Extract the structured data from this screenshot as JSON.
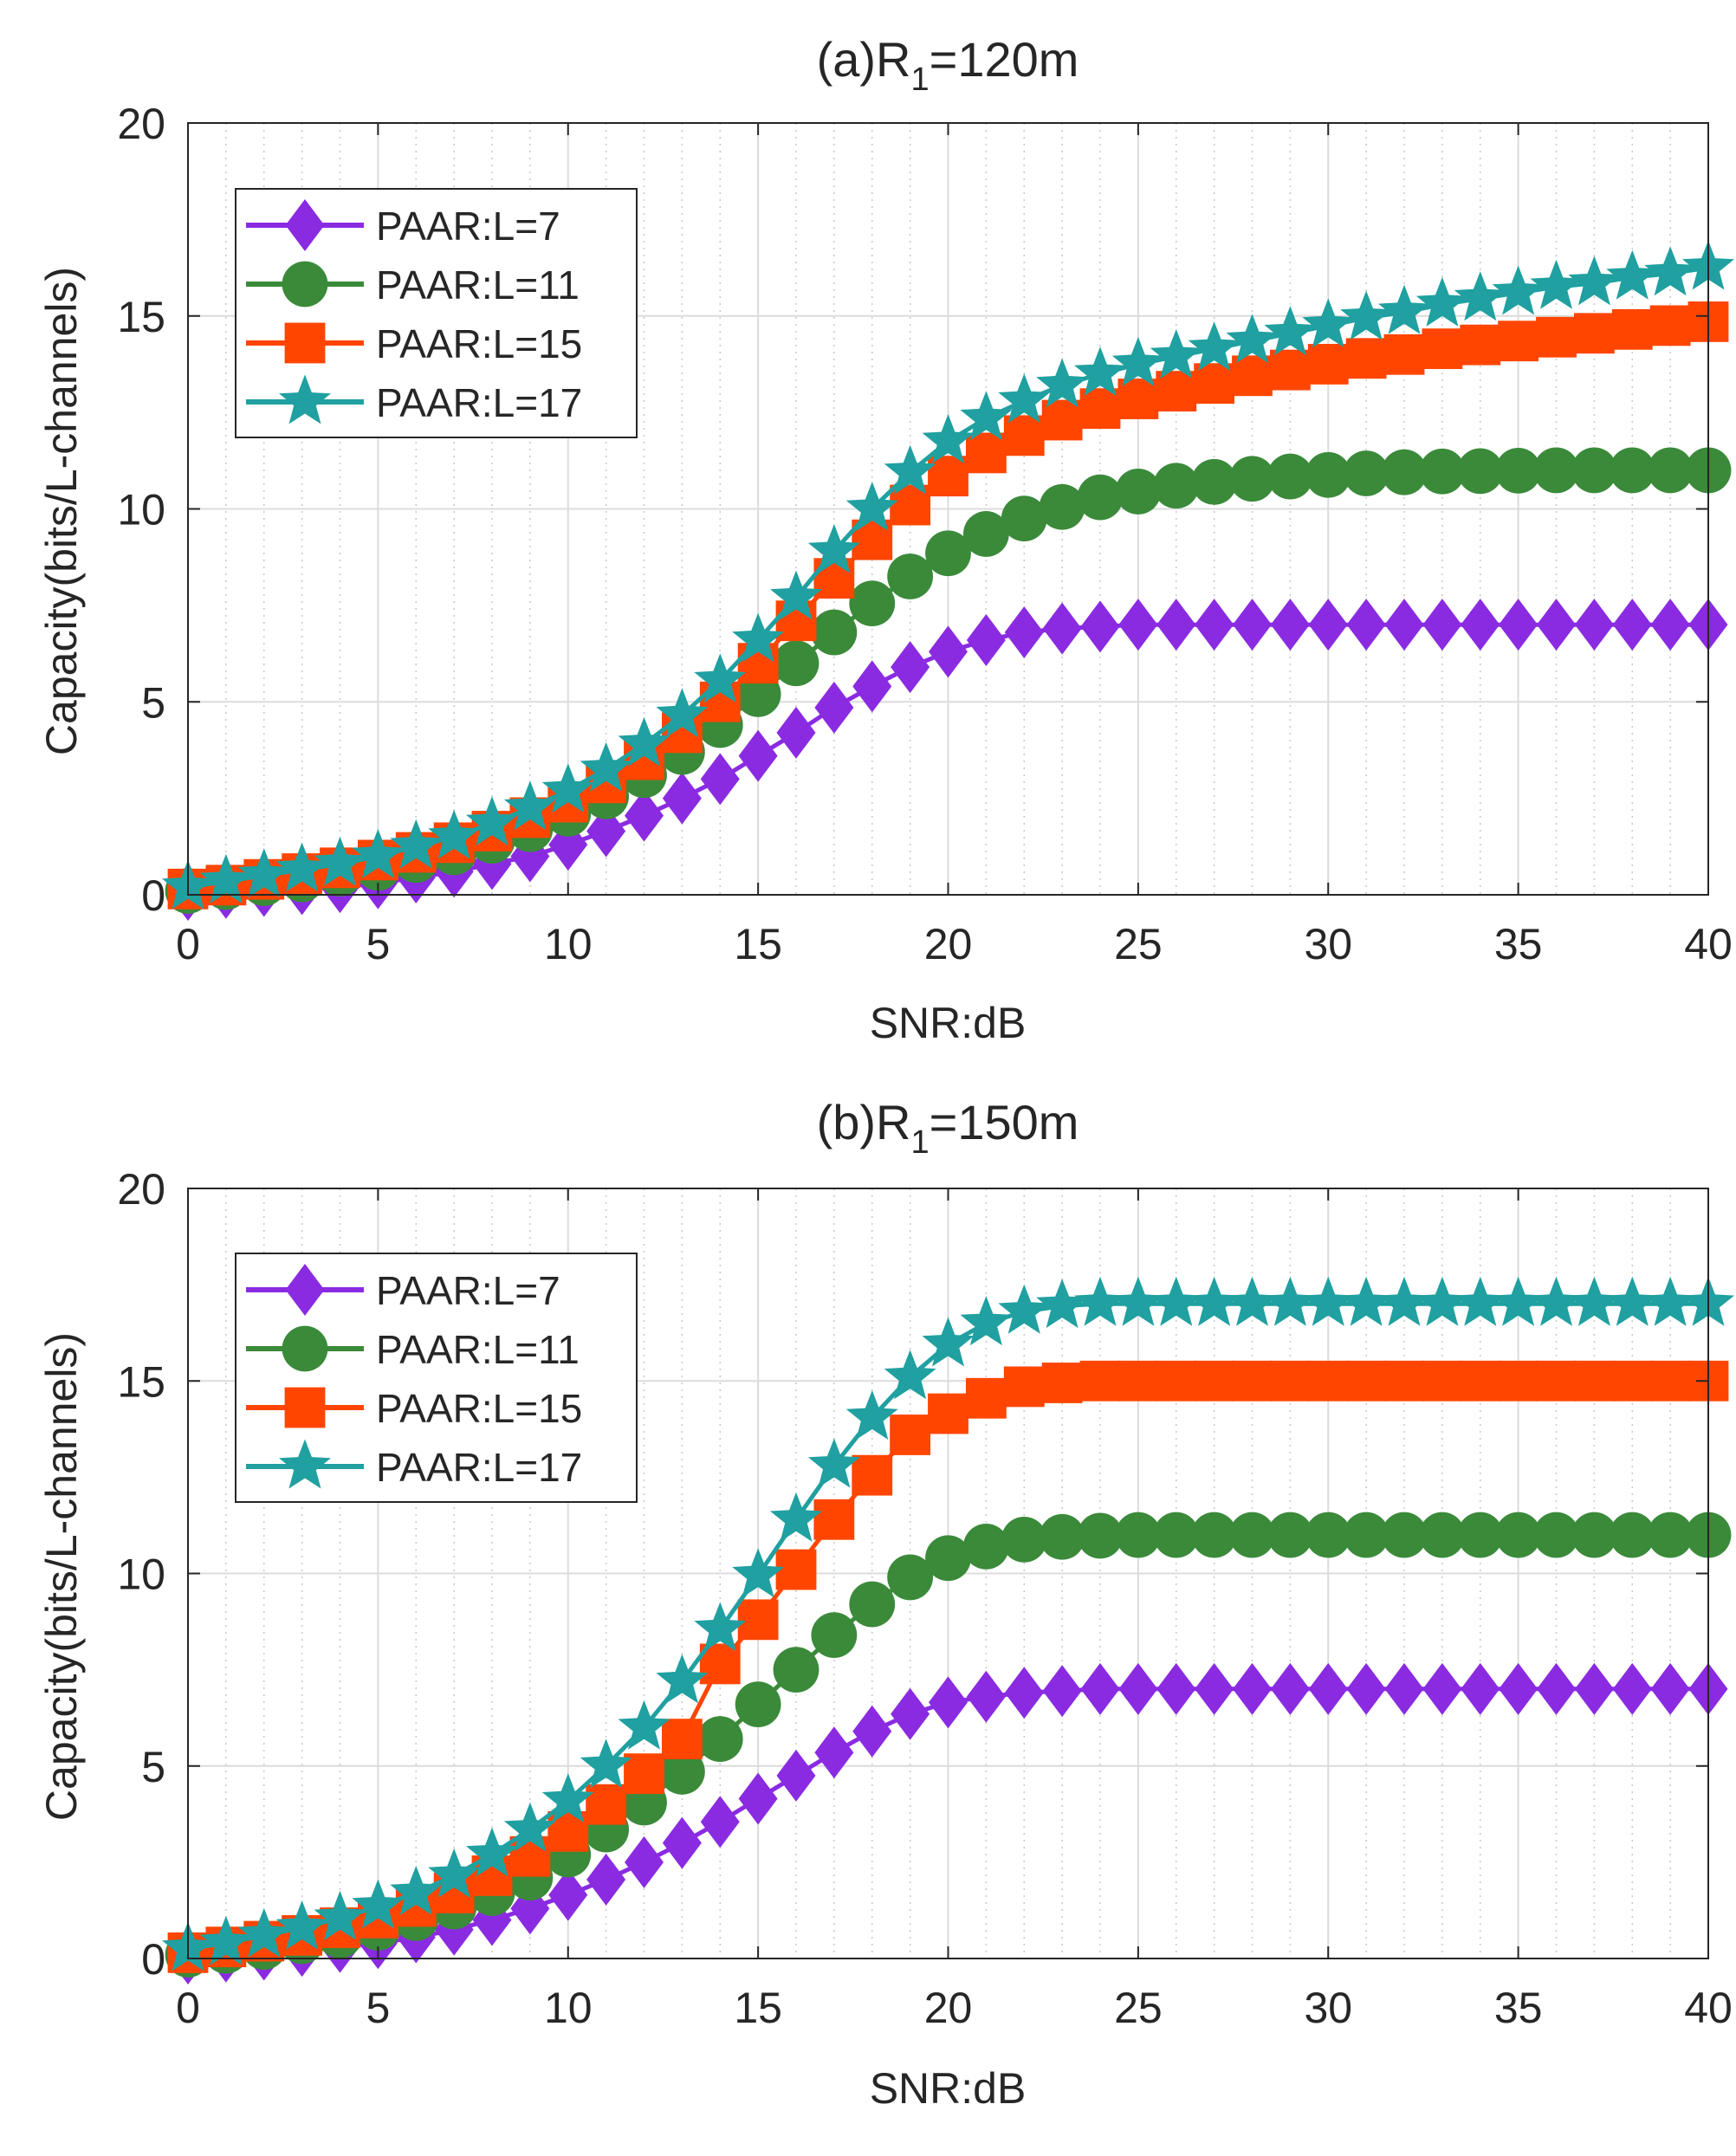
{
  "chart_data": [
    {
      "type": "line",
      "title": "(a)R",
      "title_sub": "1",
      "title_suffix": "=120m",
      "xlabel": "SNR:dB",
      "ylabel": "Capacity(bits/L-channels)",
      "xlim": [
        0,
        40
      ],
      "ylim": [
        0,
        20
      ],
      "xticks": [
        0,
        5,
        10,
        15,
        20,
        25,
        30,
        35,
        40
      ],
      "yticks": [
        0,
        5,
        10,
        15,
        20
      ],
      "grid": true,
      "legend_position": "top-left",
      "x": [
        0,
        1,
        2,
        3,
        4,
        5,
        6,
        7,
        8,
        9,
        10,
        11,
        12,
        13,
        14,
        15,
        16,
        17,
        18,
        19,
        20,
        21,
        22,
        23,
        24,
        25,
        26,
        27,
        28,
        29,
        30,
        31,
        32,
        33,
        34,
        35,
        36,
        37,
        38,
        39,
        40
      ],
      "series": [
        {
          "name": "PAAR:L=7",
          "marker": "diamond",
          "color": "#8a2be2",
          "values": [
            0,
            0.05,
            0.1,
            0.15,
            0.2,
            0.3,
            0.45,
            0.6,
            0.8,
            1.0,
            1.3,
            1.65,
            2.05,
            2.5,
            3.0,
            3.6,
            4.2,
            4.85,
            5.4,
            5.9,
            6.3,
            6.6,
            6.8,
            6.9,
            6.95,
            7.0,
            7.0,
            7.0,
            7.0,
            7.0,
            7.0,
            7.0,
            7.0,
            7.0,
            7.0,
            7.0,
            7.0,
            7.0,
            7.0,
            7.0,
            7.0
          ]
        },
        {
          "name": "PAAR:L=11",
          "marker": "circle",
          "color": "#3a8a3a",
          "values": [
            0.1,
            0.2,
            0.3,
            0.4,
            0.55,
            0.7,
            0.9,
            1.1,
            1.4,
            1.7,
            2.1,
            2.55,
            3.1,
            3.7,
            4.4,
            5.2,
            6.0,
            6.8,
            7.55,
            8.25,
            8.85,
            9.35,
            9.75,
            10.05,
            10.3,
            10.45,
            10.6,
            10.7,
            10.78,
            10.84,
            10.88,
            10.92,
            10.95,
            10.97,
            10.98,
            10.99,
            11.0,
            11.0,
            11.0,
            11.0,
            11.0
          ]
        },
        {
          "name": "PAAR:L=15",
          "marker": "square",
          "color": "#ff4500",
          "values": [
            0.15,
            0.25,
            0.4,
            0.55,
            0.7,
            0.9,
            1.1,
            1.35,
            1.65,
            2.0,
            2.4,
            2.9,
            3.5,
            4.2,
            5.0,
            6.0,
            7.1,
            8.2,
            9.2,
            10.1,
            10.85,
            11.45,
            11.9,
            12.3,
            12.6,
            12.85,
            13.05,
            13.25,
            13.45,
            13.6,
            13.75,
            13.9,
            14.0,
            14.15,
            14.25,
            14.35,
            14.45,
            14.55,
            14.65,
            14.75,
            14.85
          ]
        },
        {
          "name": "PAAR:L=17",
          "marker": "star",
          "color": "#20a0a0",
          "values": [
            0.2,
            0.35,
            0.5,
            0.65,
            0.8,
            1.0,
            1.25,
            1.5,
            1.85,
            2.25,
            2.7,
            3.25,
            3.9,
            4.65,
            5.55,
            6.6,
            7.7,
            8.9,
            10.0,
            10.95,
            11.75,
            12.35,
            12.8,
            13.2,
            13.5,
            13.75,
            13.95,
            14.15,
            14.35,
            14.55,
            14.75,
            14.95,
            15.1,
            15.3,
            15.45,
            15.6,
            15.75,
            15.85,
            16.0,
            16.1,
            16.25
          ]
        }
      ]
    },
    {
      "type": "line",
      "title": "(b)R",
      "title_sub": "1",
      "title_suffix": "=150m",
      "xlabel": "SNR:dB",
      "ylabel": "Capacity(bits/L-channels)",
      "xlim": [
        0,
        40
      ],
      "ylim": [
        0,
        20
      ],
      "xticks": [
        0,
        5,
        10,
        15,
        20,
        25,
        30,
        35,
        40
      ],
      "yticks": [
        0,
        5,
        10,
        15,
        20
      ],
      "grid": true,
      "legend_position": "top-left",
      "x": [
        0,
        1,
        2,
        3,
        4,
        5,
        6,
        7,
        8,
        9,
        10,
        11,
        12,
        13,
        14,
        15,
        16,
        17,
        18,
        19,
        20,
        21,
        22,
        23,
        24,
        25,
        26,
        27,
        28,
        29,
        30,
        31,
        32,
        33,
        34,
        35,
        36,
        37,
        38,
        39,
        40
      ],
      "series": [
        {
          "name": "PAAR:L=7",
          "marker": "diamond",
          "color": "#8a2be2",
          "values": [
            0,
            0.05,
            0.1,
            0.2,
            0.3,
            0.4,
            0.55,
            0.75,
            1.0,
            1.3,
            1.65,
            2.05,
            2.5,
            3.0,
            3.55,
            4.15,
            4.75,
            5.35,
            5.9,
            6.35,
            6.65,
            6.8,
            6.9,
            6.95,
            7.0,
            7.0,
            7.0,
            7.0,
            7.0,
            7.0,
            7.0,
            7.0,
            7.0,
            7.0,
            7.0,
            7.0,
            7.0,
            7.0,
            7.0,
            7.0,
            7.0
          ]
        },
        {
          "name": "PAAR:L=11",
          "marker": "circle",
          "color": "#3a8a3a",
          "values": [
            0.1,
            0.2,
            0.3,
            0.45,
            0.6,
            0.8,
            1.05,
            1.35,
            1.7,
            2.1,
            2.7,
            3.35,
            4.05,
            4.85,
            5.7,
            6.6,
            7.5,
            8.4,
            9.2,
            9.9,
            10.4,
            10.7,
            10.88,
            10.95,
            10.98,
            11.0,
            11.0,
            11.0,
            11.0,
            11.0,
            11.0,
            11.0,
            11.0,
            11.0,
            11.0,
            11.0,
            11.0,
            11.0,
            11.0,
            11.0,
            11.0
          ]
        },
        {
          "name": "PAAR:L=15",
          "marker": "square",
          "color": "#ff4500",
          "values": [
            0.15,
            0.3,
            0.45,
            0.6,
            0.8,
            1.05,
            1.35,
            1.7,
            2.15,
            2.65,
            3.3,
            4.0,
            4.8,
            5.7,
            7.65,
            8.8,
            10.1,
            11.4,
            12.55,
            13.6,
            14.15,
            14.55,
            14.85,
            14.95,
            15.0,
            15.0,
            15.0,
            15.0,
            15.0,
            15.0,
            15.0,
            15.0,
            15.0,
            15.0,
            15.0,
            15.0,
            15.0,
            15.0,
            15.0,
            15.0,
            15.0
          ]
        },
        {
          "name": "PAAR:L=17",
          "marker": "star",
          "color": "#20a0a0",
          "values": [
            0.25,
            0.4,
            0.6,
            0.8,
            1.05,
            1.35,
            1.7,
            2.15,
            2.7,
            3.35,
            4.1,
            5.0,
            6.0,
            7.2,
            8.55,
            9.95,
            11.4,
            12.8,
            14.05,
            15.1,
            15.95,
            16.5,
            16.8,
            16.95,
            17.0,
            17.0,
            17.0,
            17.0,
            17.0,
            17.0,
            17.0,
            17.0,
            17.0,
            17.0,
            17.0,
            17.0,
            17.0,
            17.0,
            17.0,
            17.0,
            17.0
          ]
        }
      ]
    }
  ]
}
